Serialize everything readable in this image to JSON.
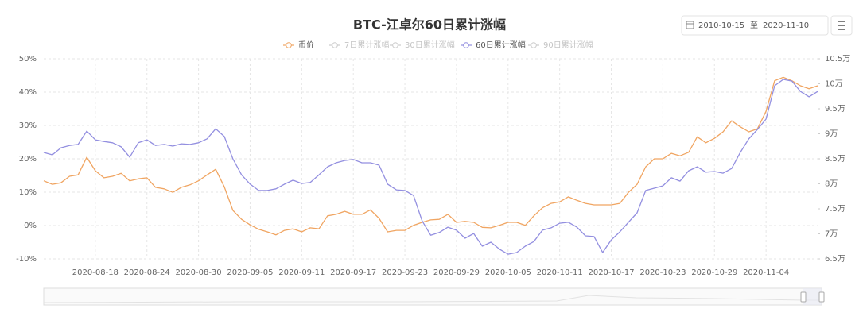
{
  "chart_data": {
    "type": "line",
    "title": "BTC-江卓尔60日累计涨幅",
    "date_range": {
      "start": "2010-10-15",
      "separator": "至",
      "end": "2020-11-10"
    },
    "x": [
      "2020-08-12",
      "2020-08-13",
      "2020-08-14",
      "2020-08-15",
      "2020-08-16",
      "2020-08-17",
      "2020-08-18",
      "2020-08-19",
      "2020-08-20",
      "2020-08-21",
      "2020-08-22",
      "2020-08-23",
      "2020-08-24",
      "2020-08-25",
      "2020-08-26",
      "2020-08-27",
      "2020-08-28",
      "2020-08-29",
      "2020-08-30",
      "2020-08-31",
      "2020-09-01",
      "2020-09-02",
      "2020-09-03",
      "2020-09-04",
      "2020-09-05",
      "2020-09-06",
      "2020-09-07",
      "2020-09-08",
      "2020-09-09",
      "2020-09-10",
      "2020-09-11",
      "2020-09-12",
      "2020-09-13",
      "2020-09-14",
      "2020-09-15",
      "2020-09-16",
      "2020-09-17",
      "2020-09-18",
      "2020-09-19",
      "2020-09-20",
      "2020-09-21",
      "2020-09-22",
      "2020-09-23",
      "2020-09-24",
      "2020-09-25",
      "2020-09-26",
      "2020-09-27",
      "2020-09-28",
      "2020-09-29",
      "2020-09-30",
      "2020-10-01",
      "2020-10-02",
      "2020-10-03",
      "2020-10-04",
      "2020-10-05",
      "2020-10-06",
      "2020-10-07",
      "2020-10-08",
      "2020-10-09",
      "2020-10-10",
      "2020-10-11",
      "2020-10-12",
      "2020-10-13",
      "2020-10-14",
      "2020-10-15",
      "2020-10-16",
      "2020-10-17",
      "2020-10-18",
      "2020-10-19",
      "2020-10-20",
      "2020-10-21",
      "2020-10-22",
      "2020-10-23",
      "2020-10-24",
      "2020-10-25",
      "2020-10-26",
      "2020-10-27",
      "2020-10-28",
      "2020-10-29",
      "2020-10-30",
      "2020-10-31",
      "2020-11-01",
      "2020-11-02",
      "2020-11-03",
      "2020-11-04",
      "2020-11-05",
      "2020-11-06",
      "2020-11-07",
      "2020-11-08",
      "2020-11-09",
      "2020-11-10"
    ],
    "xticks": [
      "2020-08-18",
      "2020-08-24",
      "2020-08-30",
      "2020-09-05",
      "2020-09-11",
      "2020-09-17",
      "2020-09-23",
      "2020-09-29",
      "2020-10-05",
      "2020-10-11",
      "2020-10-17",
      "2020-10-23",
      "2020-10-29",
      "2020-11-04"
    ],
    "ylim": [
      -10,
      50
    ],
    "yticks": [
      {
        "value": -10,
        "label": "-10%"
      },
      {
        "value": 0,
        "label": "0%"
      },
      {
        "value": 10,
        "label": "10%"
      },
      {
        "value": 20,
        "label": "20%"
      },
      {
        "value": 30,
        "label": "30%"
      },
      {
        "value": 40,
        "label": "40%"
      },
      {
        "value": 50,
        "label": "50%"
      }
    ],
    "y2lim": [
      6.5,
      10.5
    ],
    "y2ticks": [
      {
        "value": 6.5,
        "label": "6.5万"
      },
      {
        "value": 7,
        "label": "7万"
      },
      {
        "value": 7.5,
        "label": "7.5万"
      },
      {
        "value": 8,
        "label": "8万"
      },
      {
        "value": 8.5,
        "label": "8.5万"
      },
      {
        "value": 9,
        "label": "9万"
      },
      {
        "value": 9.5,
        "label": "9.5万"
      },
      {
        "value": 10,
        "label": "10万"
      },
      {
        "value": 10.5,
        "label": "10.5万"
      }
    ],
    "grid": true,
    "series": [
      {
        "name": "币价",
        "color": "#f0a562",
        "axis": "y2",
        "visible": true,
        "values": [
          8.06,
          7.99,
          8.02,
          8.15,
          8.18,
          8.53,
          8.26,
          8.12,
          8.15,
          8.21,
          8.06,
          8.1,
          8.12,
          7.93,
          7.9,
          7.83,
          7.93,
          7.98,
          8.06,
          8.18,
          8.29,
          7.94,
          7.47,
          7.29,
          7.18,
          7.09,
          7.04,
          6.98,
          7.07,
          7.1,
          7.04,
          7.12,
          7.1,
          7.36,
          7.39,
          7.45,
          7.39,
          7.39,
          7.48,
          7.31,
          7.04,
          7.07,
          7.07,
          7.17,
          7.23,
          7.28,
          7.29,
          7.39,
          7.23,
          7.25,
          7.23,
          7.13,
          7.12,
          7.17,
          7.23,
          7.23,
          7.17,
          7.36,
          7.52,
          7.61,
          7.64,
          7.74,
          7.67,
          7.61,
          7.58,
          7.58,
          7.58,
          7.61,
          7.83,
          7.99,
          8.34,
          8.5,
          8.5,
          8.61,
          8.56,
          8.63,
          8.94,
          8.82,
          8.91,
          9.04,
          9.26,
          9.14,
          9.04,
          9.1,
          9.45,
          10.06,
          10.13,
          10.06,
          9.96,
          9.9,
          9.96
        ]
      },
      {
        "name": "7日累计涨幅",
        "color": "#cccccc",
        "visible": false
      },
      {
        "name": "30日累计涨幅",
        "color": "#cccccc",
        "visible": false
      },
      {
        "name": "60日累计涨幅",
        "color": "#938fe0",
        "visible": true,
        "values": [
          21.9,
          21.2,
          23.3,
          24.0,
          24.3,
          28.3,
          25.7,
          25.2,
          24.8,
          23.6,
          20.5,
          24.8,
          25.7,
          24.0,
          24.3,
          23.8,
          24.5,
          24.3,
          24.8,
          26.0,
          29.0,
          26.7,
          20.0,
          15.2,
          12.4,
          10.5,
          10.5,
          11.0,
          12.4,
          13.6,
          12.6,
          12.9,
          15.2,
          17.6,
          18.8,
          19.5,
          19.8,
          18.8,
          18.8,
          18.1,
          12.4,
          10.7,
          10.5,
          9.0,
          1.4,
          -2.9,
          -2.1,
          -0.5,
          -1.4,
          -3.8,
          -2.4,
          -6.2,
          -5.0,
          -7.1,
          -8.6,
          -8.1,
          -6.2,
          -4.8,
          -1.4,
          -0.7,
          0.7,
          1.0,
          -0.5,
          -3.1,
          -3.3,
          -8.1,
          -4.3,
          -1.9,
          1.0,
          3.8,
          10.5,
          11.2,
          11.9,
          14.3,
          13.3,
          16.4,
          17.6,
          16.0,
          16.2,
          15.7,
          17.1,
          21.9,
          26.0,
          28.8,
          31.9,
          41.9,
          43.8,
          43.3,
          40.2,
          38.6,
          40.2
        ]
      },
      {
        "name": "90日累计涨幅",
        "color": "#cccccc",
        "visible": false
      }
    ]
  }
}
